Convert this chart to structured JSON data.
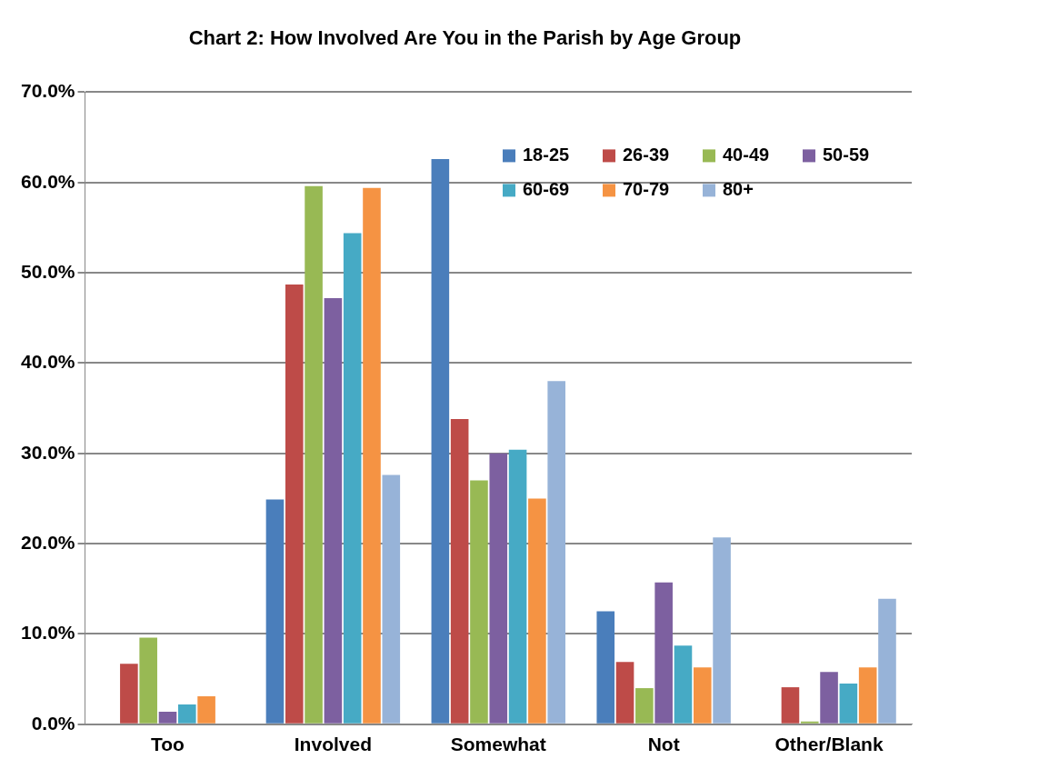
{
  "chart_data": {
    "type": "bar",
    "title": "Chart 2: How Involved Are You in the Parish by Age Group",
    "categories": [
      "Too",
      "Involved",
      "Somewhat",
      "Not",
      "Other/Blank"
    ],
    "series": [
      {
        "name": "18-25",
        "color": "#4a7ebb",
        "values": [
          0,
          24.9,
          62.6,
          12.5,
          0
        ]
      },
      {
        "name": "26-39",
        "color": "#be4b48",
        "values": [
          6.7,
          48.7,
          33.8,
          6.9,
          4.1
        ]
      },
      {
        "name": "40-49",
        "color": "#98b954",
        "values": [
          9.6,
          59.6,
          27,
          4,
          0.3
        ]
      },
      {
        "name": "50-59",
        "color": "#7d60a0",
        "values": [
          1.4,
          47.2,
          30,
          15.7,
          5.8
        ]
      },
      {
        "name": "60-69",
        "color": "#46aac5",
        "values": [
          2.2,
          54.4,
          30.4,
          8.7,
          4.5
        ]
      },
      {
        "name": "70-79",
        "color": "#f59343",
        "values": [
          3.1,
          59.4,
          25,
          6.3,
          6.3
        ]
      },
      {
        "name": "80+",
        "color": "#97b3d8",
        "values": [
          0,
          27.6,
          38,
          20.7,
          13.9
        ]
      }
    ],
    "ylim": [
      0,
      70
    ],
    "yticks": [
      {
        "value": 0,
        "label": "0.0%"
      },
      {
        "value": 10,
        "label": "10.0%"
      },
      {
        "value": 20,
        "label": "20.0%"
      },
      {
        "value": 30,
        "label": "30.0%"
      },
      {
        "value": 40,
        "label": "40.0%"
      },
      {
        "value": 50,
        "label": "50.0%"
      },
      {
        "value": 60,
        "label": "60.0%"
      },
      {
        "value": 70,
        "label": "70.0%"
      }
    ],
    "grid": "y",
    "legend": "top right"
  }
}
